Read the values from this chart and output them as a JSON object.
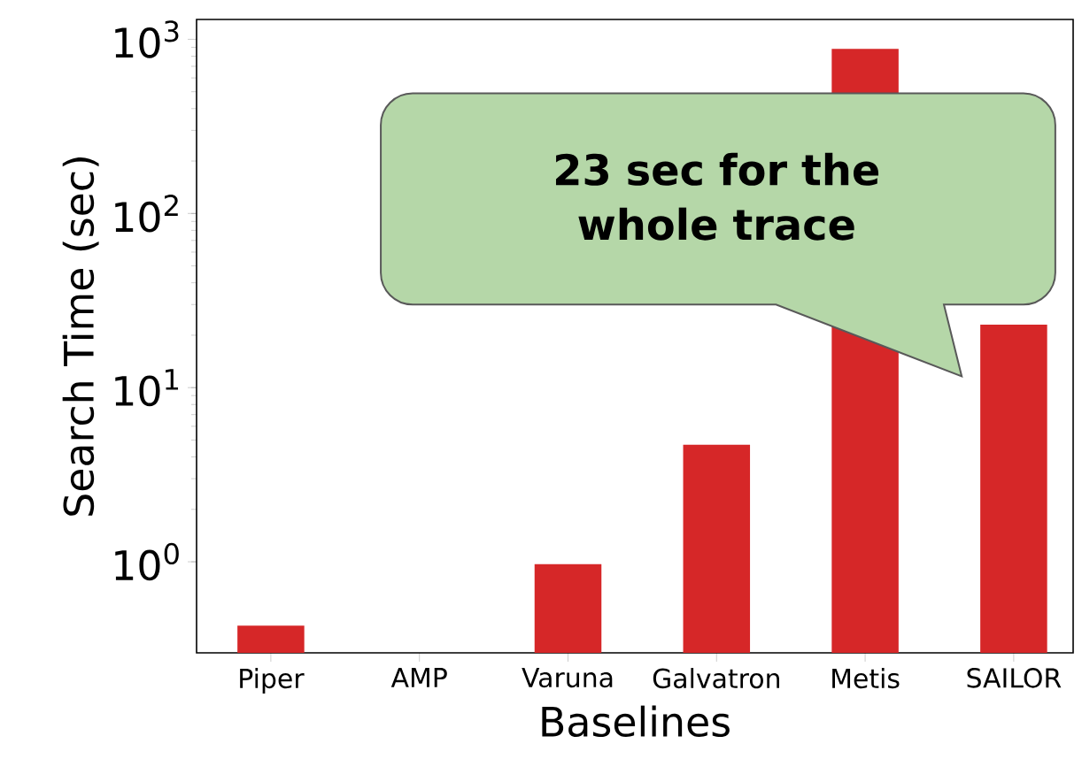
{
  "chart_data": {
    "type": "bar",
    "log": "y",
    "categories": [
      "Piper",
      "AMP",
      "Varuna",
      "Galvatron",
      "Metis",
      "SAILOR"
    ],
    "values": [
      0.43,
      null,
      0.97,
      4.7,
      880,
      23
    ],
    "color": "#d62728",
    "xlabel": "Baselines",
    "ylabel": "Search Time (sec)",
    "ylim": [
      0.3,
      1300
    ],
    "yticks": [
      {
        "value": 1,
        "label": "10$^{0}$"
      },
      {
        "value": 10,
        "label": "10$^{1}$"
      },
      {
        "value": 100,
        "label": "10$^{2}$"
      },
      {
        "value": 1000,
        "label": "10$^{3}$"
      }
    ],
    "annotations": [
      "23 sec for the whole trace"
    ]
  }
}
